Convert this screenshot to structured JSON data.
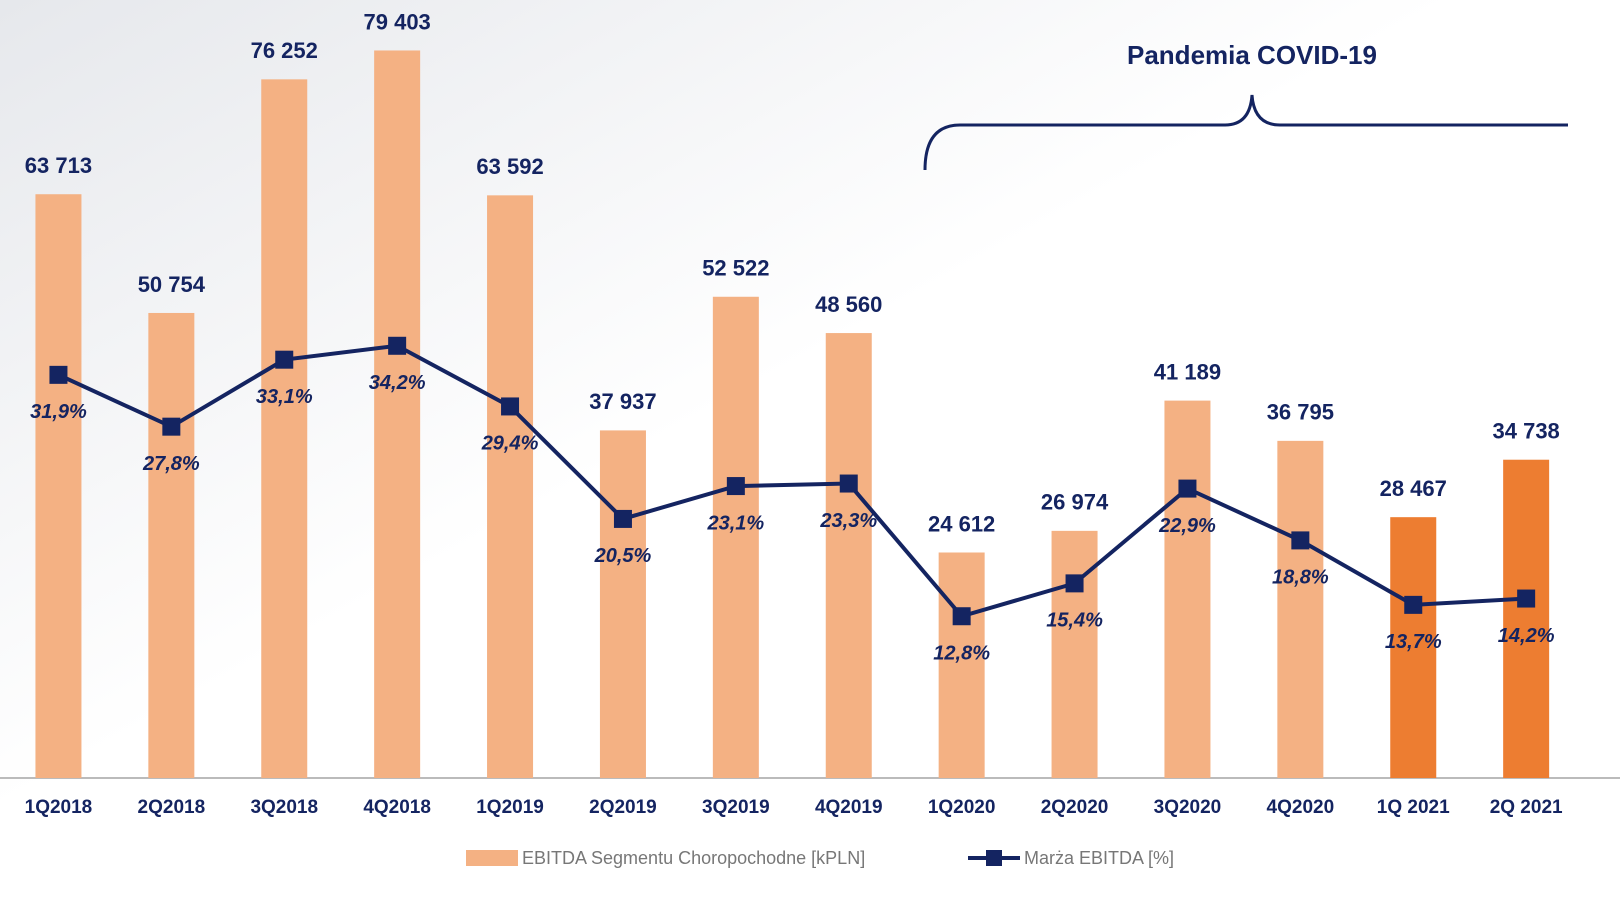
{
  "chart_data": {
    "type": "bar+line",
    "annotation": "Pandemia COVID-19",
    "categories": [
      "1Q2018",
      "2Q2018",
      "3Q2018",
      "4Q2018",
      "1Q2019",
      "2Q2019",
      "3Q2019",
      "4Q2019",
      "1Q2020",
      "2Q2020",
      "3Q2020",
      "4Q2020",
      "1Q 2021",
      "2Q 2021"
    ],
    "ylim": [
      0,
      80000
    ],
    "y2lim": [
      0,
      58
    ],
    "series": [
      {
        "name": "EBITDA Segmentu Choropochodne [kPLN]",
        "type": "bar",
        "color": "#f4b183",
        "colors": [
          "#f4b183",
          "#f4b183",
          "#f4b183",
          "#f4b183",
          "#f4b183",
          "#f4b183",
          "#f4b183",
          "#f4b183",
          "#f4b183",
          "#f4b183",
          "#f4b183",
          "#f4b183",
          "#ed7d31",
          "#ed7d31"
        ],
        "values": [
          63713,
          50754,
          76252,
          79403,
          63592,
          37937,
          52522,
          48560,
          24612,
          26974,
          41189,
          36795,
          28467,
          34738
        ],
        "value_labels": [
          "63 713",
          "50 754",
          "76 252",
          "79 403",
          "63 592",
          "37 937",
          "52 522",
          "48 560",
          "24 612",
          "26 974",
          "41 189",
          "36 795",
          "28 467",
          "34 738"
        ]
      },
      {
        "name": "Marża EBITDA [%]",
        "type": "line",
        "axis": "y2",
        "color": "#142461",
        "values": [
          31.9,
          27.8,
          33.1,
          34.2,
          29.4,
          20.5,
          23.1,
          23.3,
          12.8,
          15.4,
          22.9,
          18.8,
          13.7,
          14.2
        ],
        "value_labels": [
          "31,9%",
          "27,8%",
          "33,1%",
          "34,2%",
          "29,4%",
          "20,5%",
          "23,1%",
          "23,3%",
          "12,8%",
          "15,4%",
          "22,9%",
          "18,8%",
          "13,7%",
          "14,2%"
        ]
      }
    ]
  }
}
